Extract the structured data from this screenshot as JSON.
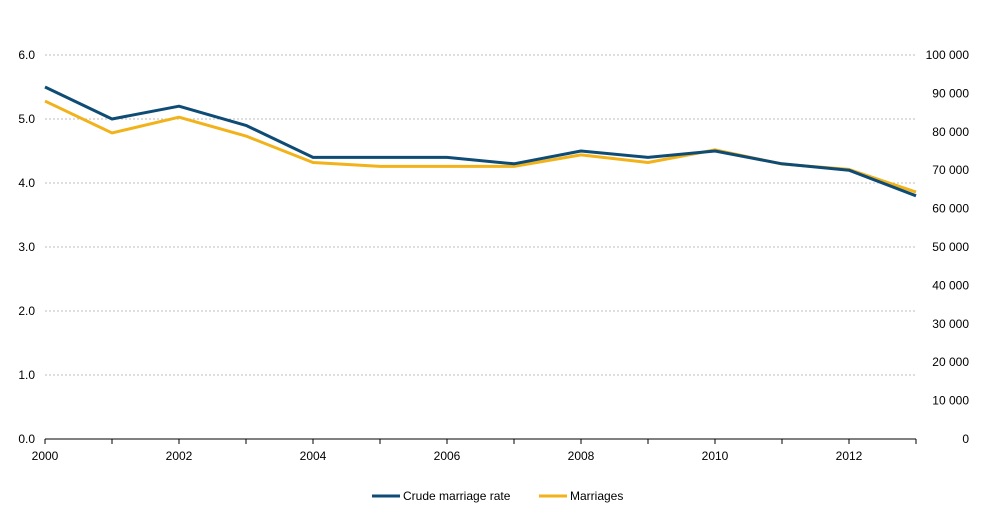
{
  "chart_data": {
    "type": "line",
    "x": [
      2000,
      2001,
      2002,
      2003,
      2004,
      2005,
      2006,
      2007,
      2008,
      2009,
      2010,
      2011,
      2012,
      2013
    ],
    "x_tick_labels": [
      "2000",
      "2002",
      "2004",
      "2006",
      "2008",
      "2010",
      "2012"
    ],
    "y_left_ticks": [
      "0.0",
      "1.0",
      "2.0",
      "3.0",
      "4.0",
      "5.0",
      "6.0"
    ],
    "y_right_ticks": [
      "0",
      "10 000",
      "20 000",
      "30 000",
      "40 000",
      "50 000",
      "60 000",
      "70 000",
      "80 000",
      "90 000",
      "100 000"
    ],
    "ylim_left": [
      0,
      6
    ],
    "ylim_right": [
      0,
      100000
    ],
    "grid": "horizontal dashed",
    "legend_position": "bottom",
    "series": [
      {
        "name": "Crude marriage rate",
        "axis": "left",
        "color": "#0f4c75",
        "values": [
          5.5,
          5.0,
          5.2,
          4.9,
          4.4,
          4.4,
          4.4,
          4.3,
          4.5,
          4.4,
          4.5,
          4.3,
          4.2,
          3.8
        ]
      },
      {
        "name": "Marriages",
        "axis": "right",
        "color": "#f2b21a",
        "values": [
          88000,
          79700,
          83800,
          78900,
          72000,
          71000,
          71000,
          71000,
          74000,
          72000,
          75300,
          71600,
          70200,
          64300
        ]
      }
    ]
  }
}
